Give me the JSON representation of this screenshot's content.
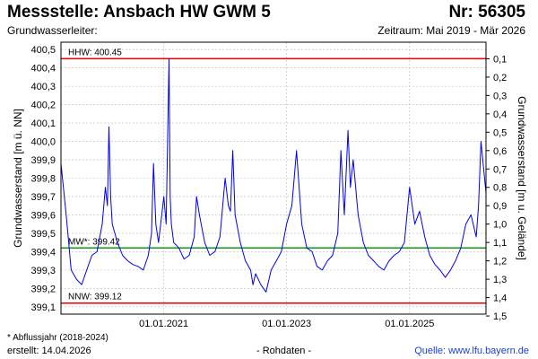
{
  "header": {
    "title": "Messstelle: Ansbach HW GWM 5",
    "station_number": "Nr: 56305",
    "aquifer_label": "Grundwasserleiter:",
    "period": "Zeitraum: Mai 2019 - Mär 2026"
  },
  "footer": {
    "footnote": "* Abflussjahr (2018-2024)",
    "created": "erstellt:  14.04.2026",
    "raw_data": "- Rohdaten -",
    "source": "Quelle: www.lfu.bayern.de"
  },
  "colors": {
    "series": "#0000ee",
    "threshold_extreme": "#ee0000",
    "threshold_mean": "#119911",
    "grid": "#bbbbbb",
    "source_link": "#1a3fd6"
  },
  "chart_data": {
    "type": "line",
    "ylabel": "Grundwasserstand [m ü. NN]",
    "y2label": "Grundwasserstand [m u. Gelände]",
    "ylim": [
      399.06,
      400.54
    ],
    "y_ticks": [
      399.1,
      399.2,
      399.3,
      399.4,
      399.5,
      399.6,
      399.7,
      399.8,
      399.9,
      400.0,
      400.1,
      400.2,
      400.3,
      400.4,
      400.5
    ],
    "y_tick_labels": [
      "399,1",
      "399,2",
      "399,3",
      "399,4",
      "399,5",
      "399,6",
      "399,7",
      "399,8",
      "399,9",
      "400,0",
      "400,1",
      "400,2",
      "400,3",
      "400,4",
      "400,5"
    ],
    "y2_ticks": [
      0.1,
      0.2,
      0.3,
      0.4,
      0.5,
      0.6,
      0.7,
      0.8,
      0.9,
      1.0,
      1.1,
      1.2,
      1.3,
      1.4,
      1.5
    ],
    "y2_tick_labels": [
      "0,1",
      "0,2",
      "0,3",
      "0,4",
      "0,5",
      "0,6",
      "0,7",
      "0,8",
      "0,9",
      "1,0",
      "1,1",
      "1,2",
      "1,3",
      "1,4",
      "1,5"
    ],
    "y2_reference_level": 400.55,
    "xlim": [
      "2019-05-01",
      "2026-03-31"
    ],
    "x_ticks": [
      "2021-01-01",
      "2023-01-01",
      "2025-01-01"
    ],
    "x_tick_labels": [
      "01.01.2021",
      "01.01.2023",
      "01.01.2025"
    ],
    "grid": true,
    "thresholds": [
      {
        "label": "HHW: 400.45",
        "value": 400.45,
        "kind": "extreme"
      },
      {
        "label": "MW*: 399.42",
        "value": 399.42,
        "kind": "mean"
      },
      {
        "label": "NNW: 399.12",
        "value": 399.12,
        "kind": "extreme"
      }
    ],
    "series": [
      {
        "x": [
          "2019-05-01",
          "2019-06-01",
          "2019-07-01",
          "2019-08-01",
          "2019-09-01",
          "2019-10-01",
          "2019-11-01",
          "2019-12-01",
          "2020-01-01",
          "2020-01-20",
          "2020-02-01",
          "2020-02-10",
          "2020-02-20",
          "2020-03-01",
          "2020-04-01",
          "2020-05-01",
          "2020-06-01",
          "2020-07-01",
          "2020-08-01",
          "2020-09-01",
          "2020-10-01",
          "2020-10-20",
          "2020-11-01",
          "2020-11-15",
          "2020-12-01",
          "2020-12-20",
          "2021-01-01",
          "2021-01-15",
          "2021-02-01",
          "2021-02-08",
          "2021-02-15",
          "2021-03-01",
          "2021-04-01",
          "2021-05-01",
          "2021-06-01",
          "2021-07-01",
          "2021-07-15",
          "2021-08-01",
          "2021-09-01",
          "2021-10-01",
          "2021-11-01",
          "2021-12-01",
          "2022-01-01",
          "2022-01-20",
          "2022-02-01",
          "2022-02-15",
          "2022-03-01",
          "2022-04-01",
          "2022-05-01",
          "2022-06-01",
          "2022-06-15",
          "2022-07-01",
          "2022-08-01",
          "2022-09-01",
          "2022-10-01",
          "2022-11-01",
          "2022-12-01",
          "2023-01-01",
          "2023-02-01",
          "2023-03-01",
          "2023-04-01",
          "2023-05-01",
          "2023-06-01",
          "2023-07-01",
          "2023-08-01",
          "2023-09-01",
          "2023-10-01",
          "2023-11-01",
          "2023-11-20",
          "2023-12-01",
          "2023-12-10",
          "2024-01-01",
          "2024-01-15",
          "2024-02-01",
          "2024-03-01",
          "2024-04-01",
          "2024-05-01",
          "2024-06-01",
          "2024-07-01",
          "2024-08-01",
          "2024-09-01",
          "2024-10-01",
          "2024-11-01",
          "2024-12-01",
          "2025-01-01",
          "2025-02-01",
          "2025-03-01",
          "2025-04-01",
          "2025-05-01",
          "2025-06-01",
          "2025-07-01",
          "2025-08-01",
          "2025-09-01",
          "2025-10-01",
          "2025-11-01",
          "2025-12-01",
          "2026-01-01",
          "2026-02-01",
          "2026-02-15",
          "2026-03-01",
          "2026-03-31"
        ],
        "values": [
          399.88,
          399.6,
          399.3,
          399.25,
          399.22,
          399.3,
          399.38,
          399.4,
          399.55,
          399.75,
          399.65,
          400.08,
          399.7,
          399.55,
          399.45,
          399.38,
          399.35,
          399.33,
          399.32,
          399.3,
          399.38,
          399.5,
          399.88,
          399.55,
          399.45,
          399.6,
          399.7,
          399.55,
          400.45,
          399.7,
          399.55,
          399.45,
          399.42,
          399.36,
          399.38,
          399.48,
          399.7,
          399.6,
          399.45,
          399.38,
          399.4,
          399.48,
          399.8,
          399.65,
          399.62,
          399.95,
          399.6,
          399.45,
          399.35,
          399.3,
          399.22,
          399.28,
          399.22,
          399.18,
          399.3,
          399.35,
          399.4,
          399.55,
          399.65,
          399.95,
          399.55,
          399.42,
          399.4,
          399.32,
          399.3,
          399.35,
          399.38,
          399.5,
          399.95,
          399.75,
          399.6,
          400.06,
          399.75,
          399.9,
          399.6,
          399.45,
          399.38,
          399.35,
          399.32,
          399.3,
          399.35,
          399.38,
          399.4,
          399.45,
          399.75,
          399.55,
          399.62,
          399.48,
          399.38,
          399.33,
          399.3,
          399.26,
          399.3,
          399.35,
          399.42,
          399.55,
          399.6,
          399.48,
          399.65,
          400.0,
          399.72
        ]
      }
    ]
  }
}
